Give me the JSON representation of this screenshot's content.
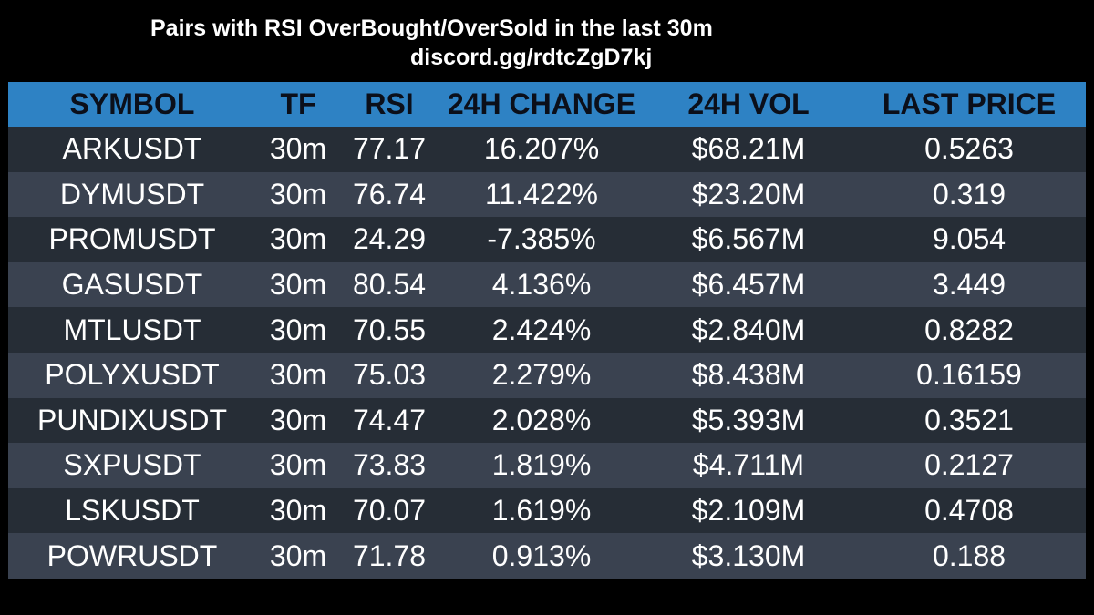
{
  "header": {
    "title": "Pairs with RSI OverBought/OverSold in the last 30m",
    "link": "discord.gg/rdtcZgD7kj"
  },
  "table": {
    "columns": [
      "SYMBOL",
      "TF",
      "RSI",
      "24H CHANGE",
      "24H VOL",
      "LAST PRICE"
    ],
    "rows": [
      [
        "ARKUSDT",
        "30m",
        "77.17",
        "16.207%",
        "$68.21M",
        "0.5263"
      ],
      [
        "DYMUSDT",
        "30m",
        "76.74",
        "11.422%",
        "$23.20M",
        "0.319"
      ],
      [
        "PROMUSDT",
        "30m",
        "24.29",
        "-7.385%",
        "$6.567M",
        "9.054"
      ],
      [
        "GASUSDT",
        "30m",
        "80.54",
        "4.136%",
        "$6.457M",
        "3.449"
      ],
      [
        "MTLUSDT",
        "30m",
        "70.55",
        "2.424%",
        "$2.840M",
        "0.8282"
      ],
      [
        "POLYXUSDT",
        "30m",
        "75.03",
        "2.279%",
        "$8.438M",
        "0.16159"
      ],
      [
        "PUNDIXUSDT",
        "30m",
        "74.47",
        "2.028%",
        "$5.393M",
        "0.3521"
      ],
      [
        "SXPUSDT",
        "30m",
        "73.83",
        "1.819%",
        "$4.711M",
        "0.2127"
      ],
      [
        "LSKUSDT",
        "30m",
        "70.07",
        "1.619%",
        "$2.109M",
        "0.4708"
      ],
      [
        "POWRUSDT",
        "30m",
        "71.78",
        "0.913%",
        "$3.130M",
        "0.188"
      ]
    ]
  },
  "colors": {
    "background": "#000000",
    "header_row": "#2e82c4",
    "header_text": "#0b0f1a",
    "row_odd": "#262d36",
    "row_even": "#3a4250",
    "text": "#ffffff"
  }
}
